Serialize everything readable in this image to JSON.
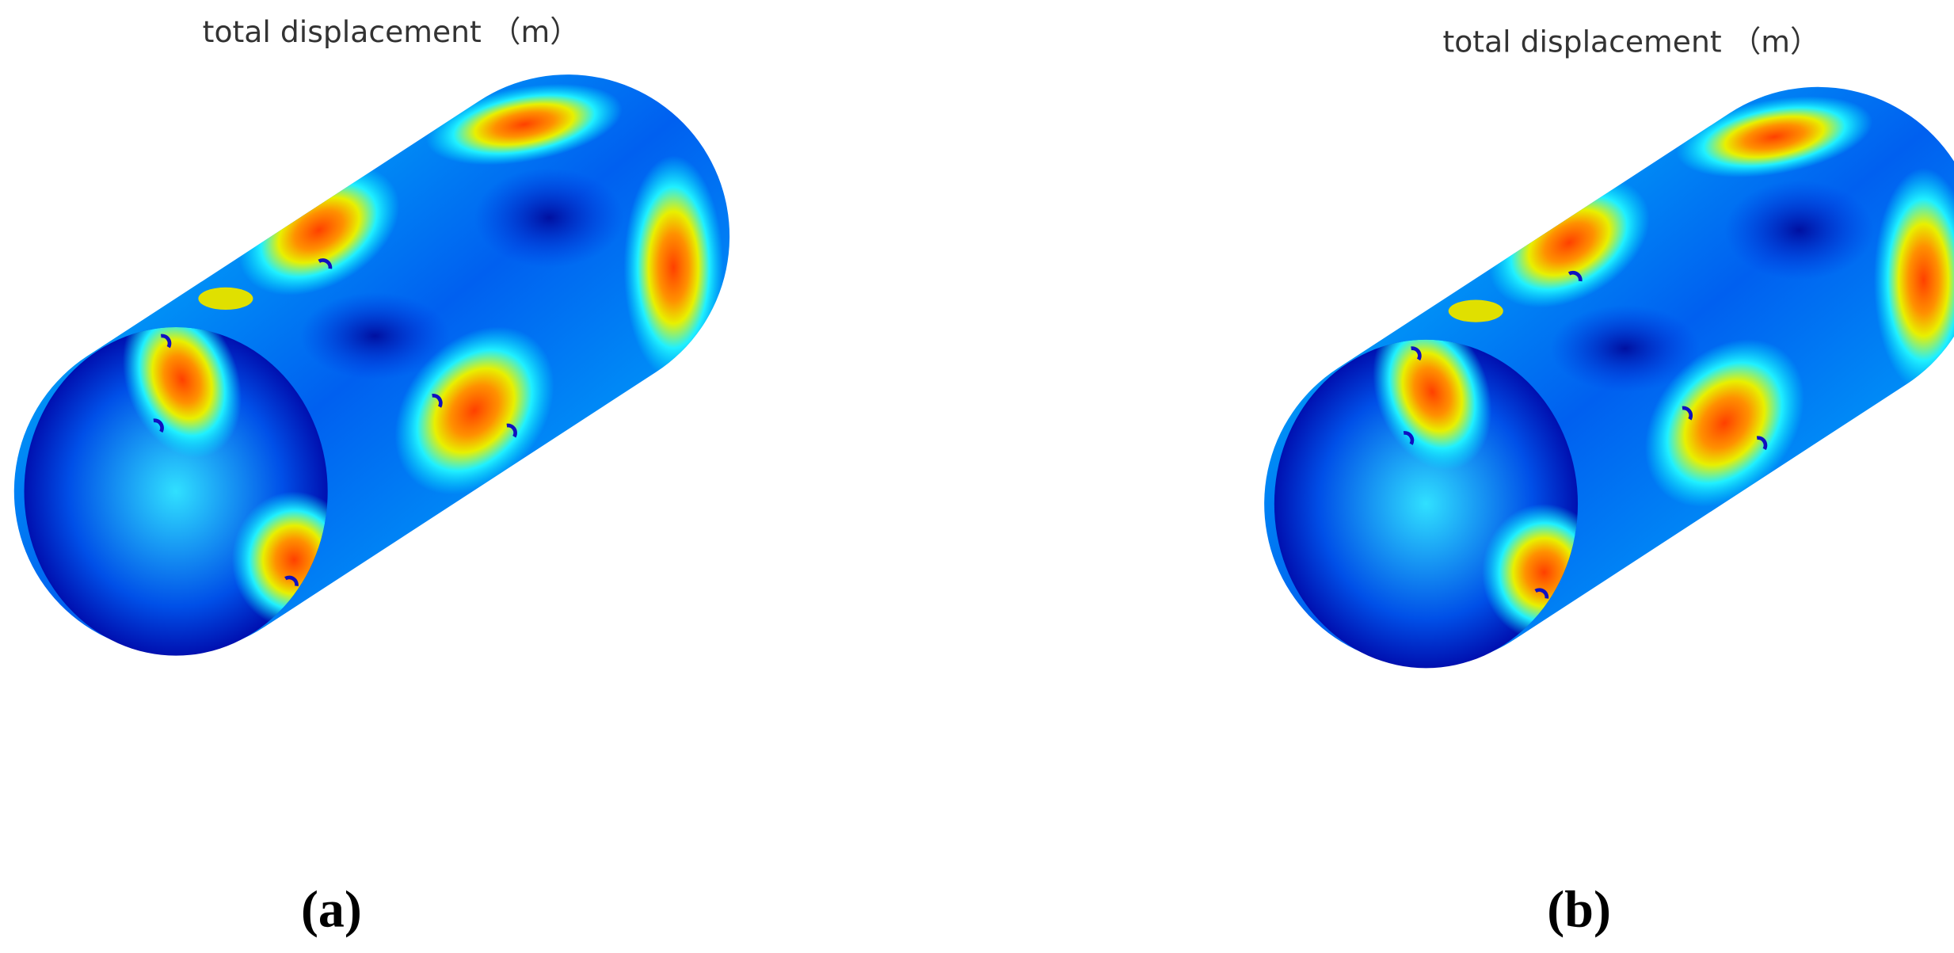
{
  "panels": [
    {
      "title": "total displacement （m）",
      "label": "(a)"
    },
    {
      "title": "total displacement （m）",
      "label": "(b)"
    }
  ]
}
